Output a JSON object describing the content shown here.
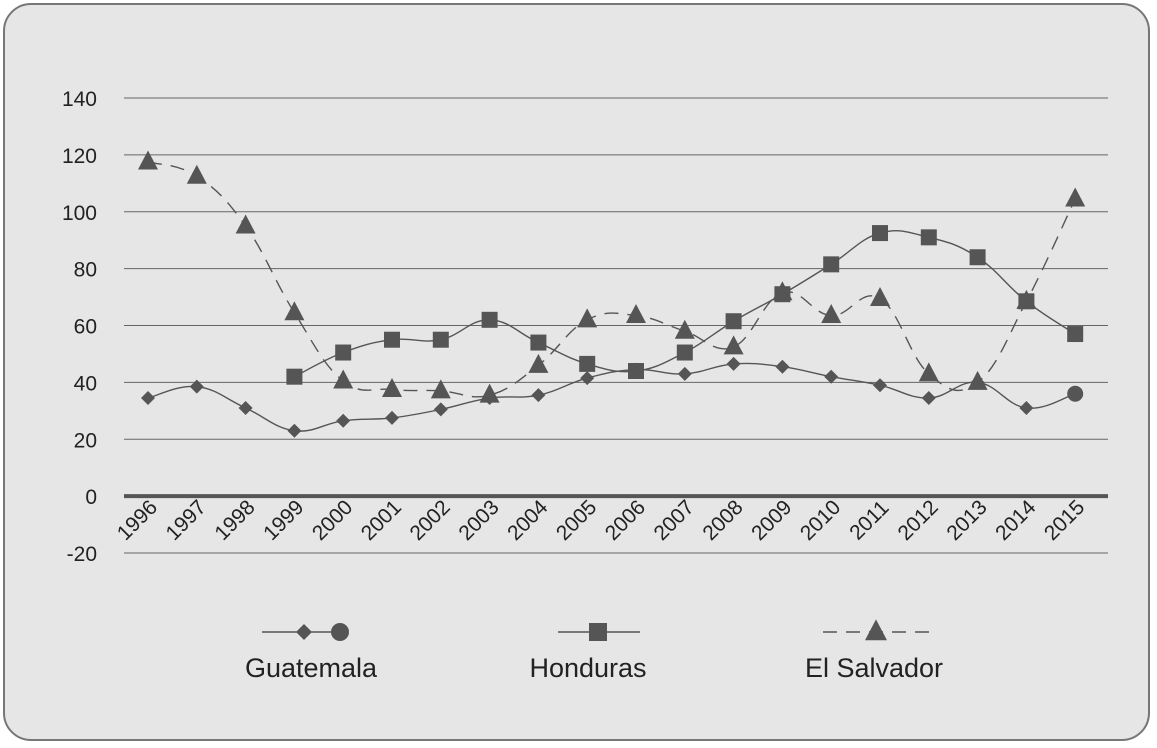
{
  "chart_data": {
    "type": "line",
    "title": "",
    "xlabel": "",
    "ylabel": "",
    "categories": [
      "1996",
      "1997",
      "1998",
      "1999",
      "2000",
      "2001",
      "2002",
      "2003",
      "2004",
      "2005",
      "2006",
      "2007",
      "2008",
      "2009",
      "2010",
      "2011",
      "2012",
      "2013",
      "2014",
      "2015"
    ],
    "ylim": [
      -20,
      140
    ],
    "yticks": [
      140,
      120,
      100,
      80,
      60,
      40,
      20,
      0,
      -20
    ],
    "grid": true,
    "legend_position": "bottom",
    "series": [
      {
        "name": "Guatemala",
        "values": [
          34.5,
          38.5,
          31,
          23,
          26.5,
          27.5,
          30.5,
          34.5,
          35.5,
          41.5,
          44.5,
          43,
          46.5,
          45.5,
          42,
          39,
          34.5,
          40,
          31,
          36
        ],
        "marker": "diamond",
        "last_marker": "circle",
        "line_style": "solid",
        "color": "#555555"
      },
      {
        "name": "Honduras",
        "values": [
          null,
          null,
          null,
          42,
          50.5,
          55,
          55,
          62,
          54,
          46.5,
          44,
          50.5,
          61.5,
          71,
          81.5,
          92.5,
          91,
          84,
          68.5,
          57
        ],
        "marker": "square",
        "line_style": "solid",
        "color": "#555555"
      },
      {
        "name": "El Salvador",
        "values": [
          117.5,
          112.5,
          95,
          64.5,
          40.5,
          37.5,
          37,
          35.5,
          46,
          62,
          63.5,
          58,
          52.5,
          71.5,
          63.5,
          69.5,
          43,
          40,
          68.5,
          104.5
        ],
        "marker": "triangle",
        "line_style": "dashed",
        "color": "#555555"
      }
    ]
  },
  "colors": {
    "background": "#e6e6e6",
    "border": "#777777",
    "grid": "#666666",
    "zero_line": "#555555",
    "series": "#555555",
    "text": "#222222"
  }
}
